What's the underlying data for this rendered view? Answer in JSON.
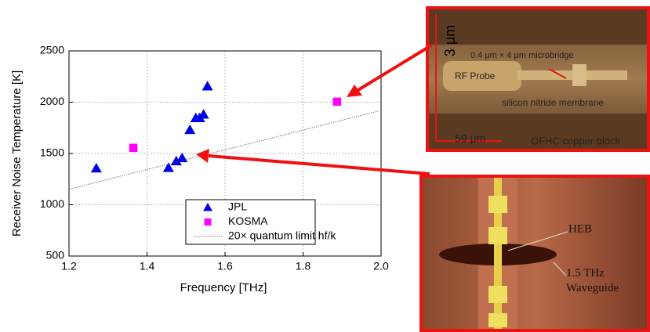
{
  "chart_data": {
    "type": "scatter",
    "x_label": "Frequency [THz]",
    "y_label": "Receiver Noise Temperature [K]",
    "xlim": [
      1.2,
      2.0
    ],
    "ylim": [
      500,
      2500
    ],
    "xticks": [
      1.2,
      1.4,
      1.6,
      1.8,
      {
        "value": 2.0,
        "label": "2.0"
      }
    ],
    "yticks": [
      500,
      1000,
      1500,
      2000,
      2500
    ],
    "grid": true,
    "legend": "lower right",
    "series": [
      {
        "name": "JPL",
        "color": "#0000e6",
        "marker": "triangle",
        "x": [
          1.27,
          1.455,
          1.475,
          1.49,
          1.51,
          1.525,
          1.535,
          1.545,
          1.555
        ],
        "values": [
          1355,
          1360,
          1425,
          1455,
          1730,
          1845,
          1845,
          1880,
          2155
        ]
      },
      {
        "name": "KOSMA",
        "color": "#ff00ff",
        "marker": "square",
        "x": [
          1.365,
          1.887
        ],
        "values": [
          1555,
          2005
        ]
      },
      {
        "name": "20× quantum limit hf/k",
        "color": "#555555",
        "marker": "dotted-line",
        "x": [
          1.2,
          2.0
        ],
        "values": [
          1152,
          1920
        ]
      }
    ]
  },
  "top_image": {
    "labels": [
      "3 μm",
      "0.4 μm × 4 μm microbridge",
      "RF Probe",
      "silicon nitride membrane",
      "59 μm",
      "OFHC copper block"
    ]
  },
  "bottom_image": {
    "labels": [
      "HEB",
      "1.5 THz Waveguide"
    ]
  }
}
